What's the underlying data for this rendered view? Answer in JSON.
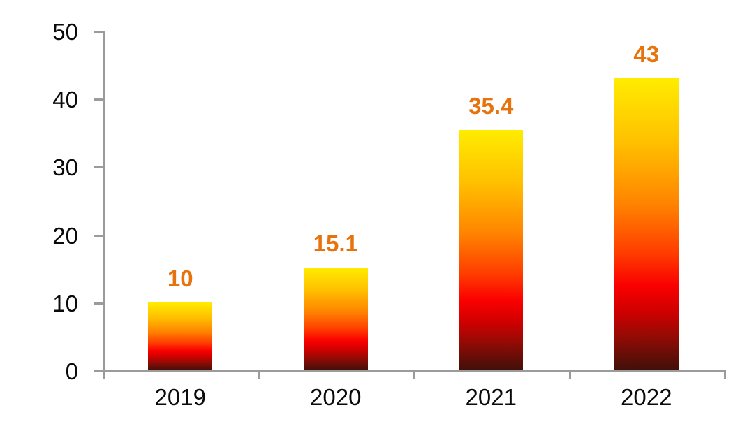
{
  "chart_data": {
    "type": "bar",
    "title": "",
    "xlabel": "",
    "ylabel": "",
    "categories": [
      "2019",
      "2020",
      "2021",
      "2022"
    ],
    "values": [
      10,
      15.1,
      35.4,
      43
    ],
    "data_labels": [
      "10",
      "15.1",
      "35.4",
      "43"
    ],
    "yticks": [
      0,
      10,
      20,
      30,
      40,
      50
    ],
    "ylim": [
      0,
      50
    ],
    "grid": false,
    "legend": null,
    "colors": {
      "data_label": "#E7730D",
      "axis_line": "#9B9B9B",
      "axis_text": "#0A0A0A",
      "background": "#FFFFFF"
    },
    "bar_gradient": {
      "stops": [
        "#FFEC00",
        "#FFC000",
        "#FF8400",
        "#FF3C00",
        "#FA0000",
        "#CF0000",
        "#970A04",
        "#401009"
      ],
      "positions_pct": [
        0,
        22,
        43,
        60,
        71,
        80,
        88,
        100
      ],
      "direction": "top-to-bottom"
    }
  }
}
